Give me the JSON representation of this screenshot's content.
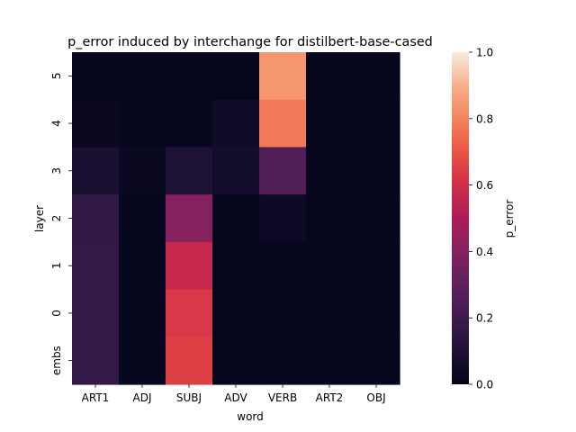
{
  "chart_data": {
    "type": "heatmap",
    "title": "p_error induced by interchange for distilbert-base-cased",
    "xlabel": "word",
    "ylabel": "layer",
    "x_categories": [
      "ART1",
      "ADJ",
      "SUBJ",
      "ADV",
      "VERB",
      "ART2",
      "OBJ"
    ],
    "y_categories": [
      "5",
      "4",
      "3",
      "2",
      "1",
      "0",
      "embs"
    ],
    "values": [
      [
        0.01,
        0.01,
        0.01,
        0.01,
        0.84,
        0.01,
        0.01
      ],
      [
        0.03,
        0.02,
        0.02,
        0.05,
        0.78,
        0.01,
        0.01
      ],
      [
        0.08,
        0.03,
        0.1,
        0.06,
        0.25,
        0.01,
        0.01
      ],
      [
        0.16,
        0.02,
        0.4,
        0.01,
        0.04,
        0.01,
        0.01
      ],
      [
        0.17,
        0.02,
        0.57,
        0.01,
        0.01,
        0.01,
        0.01
      ],
      [
        0.17,
        0.02,
        0.63,
        0.01,
        0.01,
        0.01,
        0.01
      ],
      [
        0.17,
        0.02,
        0.65,
        0.01,
        0.01,
        0.01,
        0.01
      ]
    ],
    "colorbar": {
      "label": "p_error",
      "range": [
        0.0,
        1.0
      ],
      "ticks": [
        "0.0",
        "0.2",
        "0.4",
        "0.6",
        "0.8",
        "1.0"
      ],
      "colormap": "rocket"
    }
  }
}
